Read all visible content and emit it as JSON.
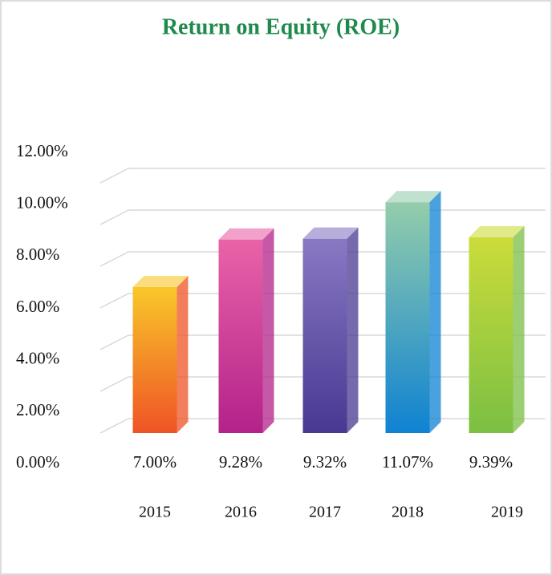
{
  "chart_data": {
    "type": "bar",
    "title": "Return on Equity (ROE)",
    "categories": [
      "2015",
      "2016",
      "2017",
      "2018",
      "2019"
    ],
    "values": [
      7.0,
      9.28,
      9.32,
      11.07,
      9.39
    ],
    "value_labels": [
      "7.00%",
      "9.28%",
      "9.32%",
      "11.07%",
      "9.39%"
    ],
    "colors": [
      [
        "#f9c72a",
        "#ef5325"
      ],
      [
        "#e963a8",
        "#b3228a"
      ],
      [
        "#8978c3",
        "#483892"
      ],
      [
        "#94cdab",
        "#0f82d2"
      ],
      [
        "#cbdc3a",
        "#7bbf44"
      ]
    ],
    "ylim": [
      0,
      12
    ],
    "yticks": [
      {
        "value": 0,
        "label": "0.00%"
      },
      {
        "value": 2,
        "label": "2.00%"
      },
      {
        "value": 4,
        "label": "4.00%"
      },
      {
        "value": 6,
        "label": "6.00%"
      },
      {
        "value": 8,
        "label": "8.00%"
      },
      {
        "value": 10,
        "label": "10.00%"
      },
      {
        "value": 12,
        "label": "12.00%"
      }
    ],
    "grid": true
  }
}
